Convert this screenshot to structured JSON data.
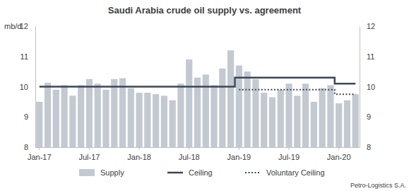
{
  "chart_data": {
    "type": "bar",
    "title": "Saudi Arabia crude oil supply vs. agreement",
    "y_label": "mb/d",
    "source": "Petro-Logistics S.A.",
    "categories": [
      "Jan-17",
      null,
      null,
      null,
      null,
      null,
      "Jul-17",
      null,
      null,
      null,
      null,
      null,
      "Jan-18",
      null,
      null,
      null,
      null,
      null,
      "Jul-18",
      null,
      null,
      null,
      null,
      null,
      "Jan-19",
      null,
      null,
      null,
      null,
      null,
      "Jul-19",
      null,
      null,
      null,
      null,
      null,
      "Jan-20",
      null,
      null
    ],
    "series": [
      {
        "name": "Supply",
        "type": "bar",
        "color": "#c3c9d1",
        "values": [
          9.5,
          10.13,
          9.9,
          10.05,
          9.7,
          10.05,
          10.25,
          10.1,
          9.9,
          10.25,
          10.28,
          9.95,
          9.8,
          9.8,
          9.75,
          9.7,
          9.55,
          10.1,
          10.9,
          10.3,
          10.4,
          10.05,
          10.6,
          11.2,
          10.7,
          10.5,
          10.25,
          9.8,
          9.65,
          9.9,
          10.1,
          9.7,
          10.1,
          9.5,
          9.95,
          10.05,
          9.45,
          9.55,
          9.75
        ]
      },
      {
        "name": "Ceiling",
        "type": "line",
        "color": "#3b4756",
        "line_style": "solid",
        "values": [
          10.0,
          10.0,
          10.0,
          10.0,
          10.0,
          10.0,
          10.0,
          10.0,
          10.0,
          10.0,
          10.0,
          10.0,
          10.0,
          10.0,
          10.0,
          10.0,
          10.0,
          10.0,
          10.0,
          10.0,
          10.0,
          10.0,
          10.0,
          10.0,
          10.3,
          10.3,
          10.3,
          10.3,
          10.3,
          10.3,
          10.3,
          10.3,
          10.3,
          10.3,
          10.3,
          10.3,
          10.1,
          10.1,
          10.1
        ]
      },
      {
        "name": "Voluntary Ceiling",
        "type": "line",
        "color": "#3b4756",
        "line_style": "dotted",
        "values": [
          null,
          null,
          null,
          null,
          null,
          null,
          null,
          null,
          null,
          null,
          null,
          null,
          null,
          null,
          null,
          null,
          null,
          null,
          null,
          null,
          null,
          null,
          null,
          null,
          9.9,
          9.9,
          9.9,
          9.9,
          9.9,
          9.9,
          9.9,
          9.9,
          9.9,
          9.9,
          9.9,
          9.9,
          9.75,
          9.75,
          9.75
        ]
      }
    ],
    "ylim": [
      8,
      12
    ],
    "yticks": [
      8,
      9,
      10,
      11,
      12
    ],
    "y2lim": [
      8,
      12
    ],
    "y2ticks": [
      8,
      9,
      10,
      11,
      12
    ],
    "grid": false,
    "legend": "bottom"
  }
}
